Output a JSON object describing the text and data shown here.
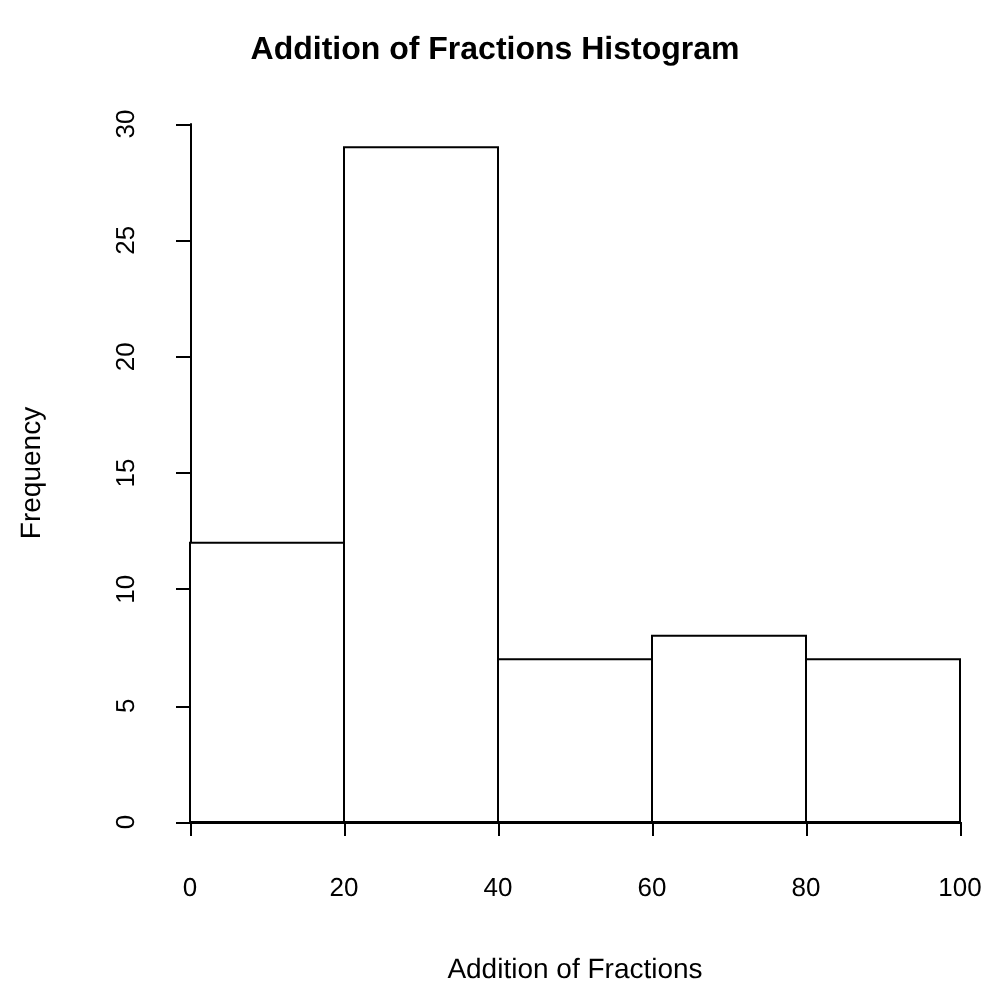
{
  "chart_data": {
    "type": "histogram",
    "title": "Addition of Fractions Histogram",
    "xlabel": "Addition of Fractions",
    "ylabel": "Frequency",
    "bins": [
      0,
      20,
      40,
      60,
      80,
      100
    ],
    "values": [
      12,
      29,
      7,
      8,
      7
    ],
    "color": "#ffffff",
    "xlim": [
      0,
      100
    ],
    "xticks": [
      0,
      20,
      40,
      60,
      80,
      100
    ],
    "ylim": [
      0,
      30
    ],
    "yticks": [
      0,
      5,
      10,
      15,
      20,
      25,
      30
    ]
  }
}
